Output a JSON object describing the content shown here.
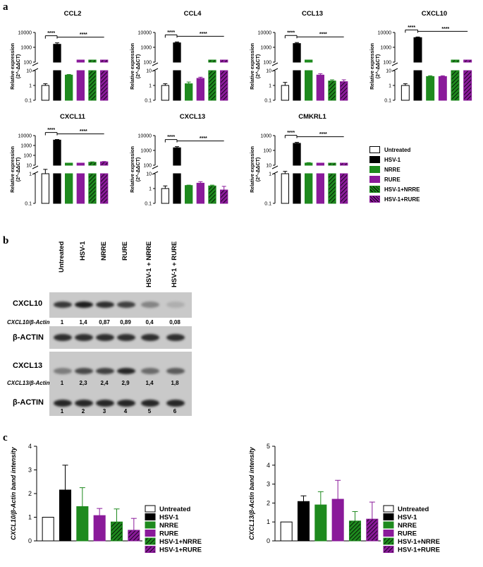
{
  "panels": {
    "a": "a",
    "b": "b",
    "c": "c"
  },
  "colors": {
    "Untreated": "#ffffff",
    "HSV-1": "#000000",
    "NRRE": "#1e8a1e",
    "RURE": "#8a1a9a",
    "HSV-1+NRRE": "#1e8a1e",
    "HSV-1+RURE": "#8a1a9a"
  },
  "legend_a": [
    "Untreated",
    "HSV-1",
    "NRRE",
    "RURE",
    "HSV-1+NRRE",
    "HSV-1+RURE"
  ],
  "chart_data": [
    {
      "type": "bar",
      "scale": "log-broken",
      "title": "CCL2",
      "ylabel": "Relative expression (2^-ΔΔCT)",
      "categories": [
        "Untreated",
        "HSV-1",
        "NRRE",
        "RURE",
        "HSV-1+NRRE",
        "HSV-1+RURE"
      ],
      "values": [
        1.0,
        1600,
        5,
        13,
        45,
        45
      ],
      "errors": [
        0.3,
        400,
        0.5,
        1,
        5,
        5
      ],
      "yticks_top": [
        "10000",
        "1000",
        "100"
      ],
      "yticks_bottom": [
        "10",
        "1",
        "0.1"
      ],
      "sig": [
        "****",
        "****"
      ]
    },
    {
      "type": "bar",
      "scale": "log-broken",
      "title": "CCL4",
      "ylabel": "Relative expression (2^-ΔΔCT)",
      "categories": [
        "Untreated",
        "HSV-1",
        "NRRE",
        "RURE",
        "HSV-1+NRRE",
        "HSV-1+RURE"
      ],
      "values": [
        1.0,
        2000,
        1.3,
        3,
        28,
        22
      ],
      "errors": [
        0.3,
        300,
        0.4,
        0.6,
        3,
        2
      ],
      "yticks_top": [
        "10000",
        "1000",
        "100"
      ],
      "yticks_bottom": [
        "10",
        "1",
        "0.1"
      ],
      "sig": [
        "****",
        "****"
      ]
    },
    {
      "type": "bar",
      "scale": "log-broken",
      "title": "CCL13",
      "ylabel": "Relative expression (2^-ΔΔCT)",
      "categories": [
        "Untreated",
        "HSV-1",
        "NRRE",
        "RURE",
        "HSV-1+NRRE",
        "HSV-1+RURE"
      ],
      "values": [
        1.0,
        1800,
        20,
        5,
        2,
        1.8
      ],
      "errors": [
        0.6,
        300,
        2,
        1.2,
        0.4,
        0.6
      ],
      "yticks_top": [
        "10000",
        "1000",
        "100"
      ],
      "yticks_bottom": [
        "10",
        "1",
        "0.1"
      ],
      "sig": [
        "****",
        "****"
      ]
    },
    {
      "type": "bar",
      "scale": "log-broken",
      "title": "CXCL10",
      "ylabel": "Relative expression (2^-ΔΔCT)",
      "categories": [
        "Untreated",
        "HSV-1",
        "NRRE",
        "RURE",
        "HSV-1+NRRE",
        "HSV-1+RURE"
      ],
      "values": [
        1.0,
        4500,
        4,
        4,
        40,
        45
      ],
      "errors": [
        0.3,
        500,
        0.5,
        0.5,
        5,
        5
      ],
      "yticks_top": [
        "10000",
        "1000",
        "100"
      ],
      "yticks_bottom": [
        "10",
        "1",
        "0.1"
      ],
      "sig": [
        "****",
        "****"
      ]
    },
    {
      "type": "bar",
      "scale": "log-broken",
      "title": "CXCL11",
      "ylabel": "Relative expression (2^-ΔΔCT)",
      "categories": [
        "Untreated",
        "HSV-1",
        "NRRE",
        "RURE",
        "HSV-1+NRRE",
        "HSV-1+RURE"
      ],
      "values": [
        1.0,
        3500,
        3.5,
        3,
        20,
        22
      ],
      "errors": [
        0.4,
        500,
        0.4,
        0.4,
        2,
        2
      ],
      "yticks_top": [
        "10000",
        "1000",
        "100",
        "10"
      ],
      "yticks_bottom": [
        "1",
        "0.1"
      ],
      "sig": [
        "****",
        "****"
      ]
    },
    {
      "type": "bar",
      "scale": "log-broken",
      "title": "CXCL13",
      "ylabel": "Relative expression (2^-ΔΔCT)",
      "categories": [
        "Untreated",
        "HSV-1",
        "NRRE",
        "RURE",
        "HSV-1+NRRE",
        "HSV-1+RURE"
      ],
      "values": [
        1.0,
        1500,
        1.6,
        2.3,
        1.5,
        0.8
      ],
      "errors": [
        0.5,
        300,
        0.1,
        0.6,
        0.2,
        0.6
      ],
      "yticks_top": [
        "10000",
        "1000",
        "100"
      ],
      "yticks_bottom": [
        "10",
        "1",
        "0.1"
      ],
      "sig": [
        "****",
        "****"
      ]
    },
    {
      "type": "bar",
      "scale": "log-broken",
      "title": "CMKRL1",
      "ylabel": "Relative expression (2^-ΔΔCT)",
      "categories": [
        "Untreated",
        "HSV-1",
        "NRRE",
        "RURE",
        "HSV-1+NRRE",
        "HSV-1+RURE"
      ],
      "values": [
        1.0,
        300,
        14,
        7,
        4,
        4.5
      ],
      "errors": [
        0.2,
        50,
        1,
        1,
        1,
        0.5
      ],
      "yticks_top": [
        "1000",
        "100",
        "10"
      ],
      "yticks_bottom": [
        "1",
        "0.1"
      ],
      "sig": [
        "****",
        "****"
      ]
    },
    {
      "type": "bar",
      "scale": "linear",
      "title": "",
      "ylabel": "CXCL10/β-Actin band intensity",
      "categories": [
        "Untreated",
        "HSV-1",
        "NRRE",
        "RURE",
        "HSV-1+NRRE",
        "HSV-1+RURE"
      ],
      "values": [
        1.0,
        2.15,
        1.45,
        1.07,
        0.8,
        0.45
      ],
      "errors": [
        0,
        1.05,
        0.8,
        0.3,
        0.55,
        0.5
      ],
      "ylim": [
        0,
        4
      ],
      "yticks": [
        "0",
        "1",
        "2",
        "3",
        "4"
      ]
    },
    {
      "type": "bar",
      "scale": "linear",
      "title": "",
      "ylabel": "CXCL13/β-Actin band intensity",
      "categories": [
        "Untreated",
        "HSV-1",
        "NRRE",
        "RURE",
        "HSV-1+NRRE",
        "HSV-1+RURE"
      ],
      "values": [
        1.0,
        2.08,
        1.9,
        2.2,
        1.05,
        1.15
      ],
      "errors": [
        0,
        0.3,
        0.7,
        1.0,
        0.5,
        0.9
      ],
      "ylim": [
        0,
        5
      ],
      "yticks": [
        "0",
        "1",
        "2",
        "3",
        "4",
        "5"
      ]
    }
  ],
  "blot": {
    "lanes": [
      "Untreated",
      "HSV-1",
      "NRRE",
      "RURE",
      "HSV-1 + NRRE",
      "HSV-1 + RURE"
    ],
    "cxcl10_label": "CXCL10",
    "cxcl10_ratio_label": "CXCL10/β-Actin",
    "cxcl10_ratios": [
      "1",
      "1,4",
      "0,87",
      "0,89",
      "0,4",
      "0,08"
    ],
    "cxcl10_intensity": [
      0.85,
      1.0,
      0.9,
      0.8,
      0.4,
      0.15
    ],
    "cxcl13_label": "CXCL13",
    "cxcl13_ratio_label": "CXCL13/β-Actin",
    "cxcl13_ratios": [
      "1",
      "2,3",
      "2,4",
      "2,9",
      "1,4",
      "1,8"
    ],
    "cxcl13_intensity": [
      0.45,
      0.75,
      0.8,
      0.95,
      0.55,
      0.65
    ],
    "actin_label": "β-ACTIN",
    "lane_numbers": [
      "1",
      "2",
      "3",
      "4",
      "5",
      "6"
    ]
  }
}
